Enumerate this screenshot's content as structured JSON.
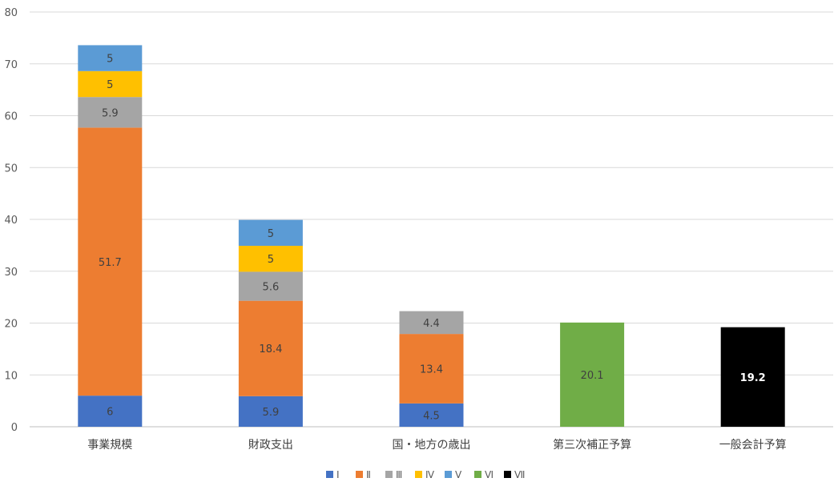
{
  "chart_data": {
    "type": "bar",
    "stacked": true,
    "categories": [
      "事業規模",
      "財政支出",
      "国・地方の歳出",
      "第三次補正予算",
      "一般会計予算"
    ],
    "ylim": [
      0,
      80
    ],
    "yticks": [
      "0",
      "10",
      "20",
      "30",
      "40",
      "50",
      "60",
      "70",
      "80"
    ],
    "grid": true,
    "legend_position": "bottom",
    "series": [
      {
        "name": "Ⅰ",
        "color": "#4472C4",
        "values": [
          6,
          5.9,
          4.5,
          null,
          null
        ],
        "labels": [
          "6",
          "5.9",
          "4.5",
          "",
          ""
        ]
      },
      {
        "name": "Ⅱ",
        "color": "#ED7D31",
        "values": [
          51.7,
          18.4,
          13.4,
          null,
          null
        ],
        "labels": [
          "51.7",
          "18.4",
          "13.4",
          "",
          ""
        ]
      },
      {
        "name": "Ⅲ",
        "color": "#A5A5A5",
        "values": [
          5.9,
          5.6,
          4.4,
          null,
          null
        ],
        "labels": [
          "5.9",
          "5.6",
          "4.4",
          "",
          ""
        ]
      },
      {
        "name": "Ⅳ",
        "color": "#FFC000",
        "values": [
          5,
          5,
          null,
          null,
          null
        ],
        "labels": [
          "5",
          "5",
          "",
          "",
          ""
        ]
      },
      {
        "name": "Ⅴ",
        "color": "#5B9BD5",
        "values": [
          5,
          5,
          null,
          null,
          null
        ],
        "labels": [
          "5",
          "5",
          "",
          "",
          ""
        ]
      },
      {
        "name": "Ⅵ",
        "color": "#70AD47",
        "values": [
          null,
          null,
          null,
          20.1,
          null
        ],
        "labels": [
          "",
          "",
          "",
          "20.1",
          ""
        ]
      },
      {
        "name": "Ⅶ",
        "color": "#000000",
        "values": [
          null,
          null,
          null,
          null,
          19.2
        ],
        "labels": [
          "",
          "",
          "",
          "",
          "19.2"
        ]
      }
    ]
  }
}
